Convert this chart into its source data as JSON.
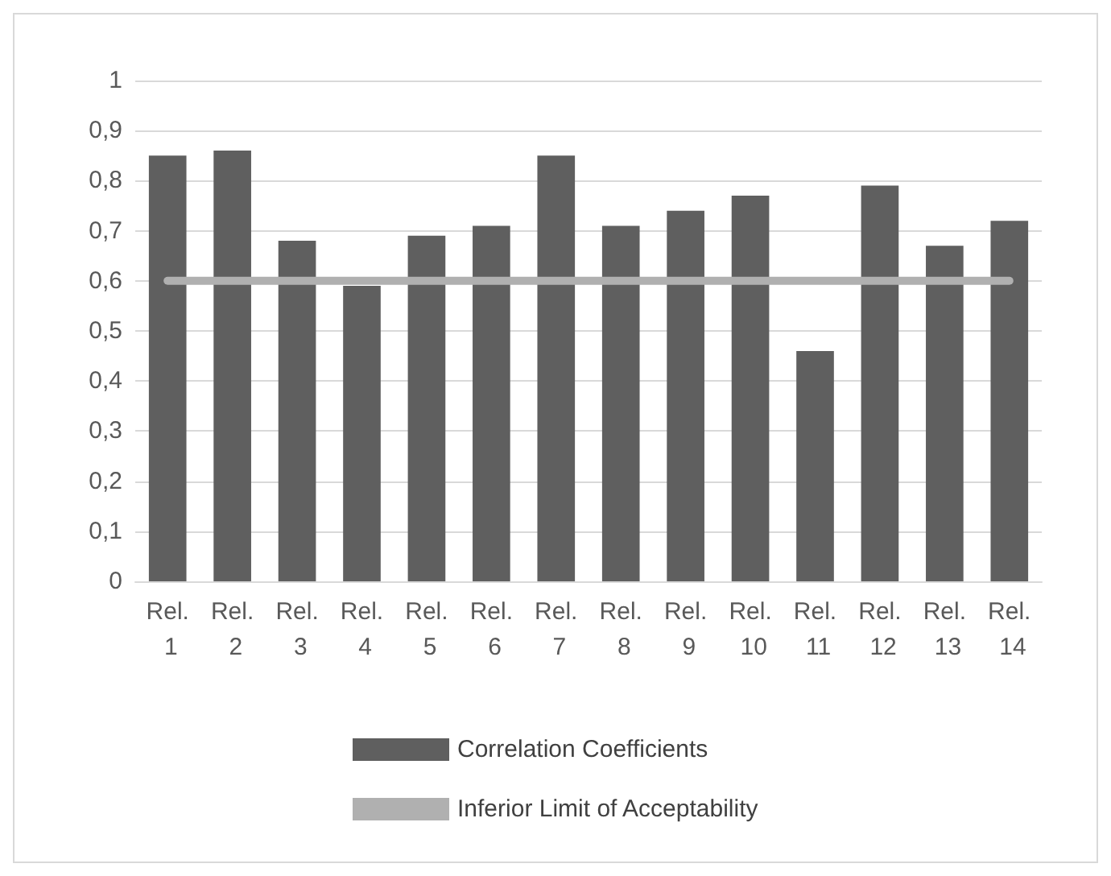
{
  "chart_data": {
    "type": "bar",
    "categories": [
      "Rel. 1",
      "Rel. 2",
      "Rel. 3",
      "Rel. 4",
      "Rel. 5",
      "Rel. 6",
      "Rel. 7",
      "Rel. 8",
      "Rel. 9",
      "Rel. 10",
      "Rel. 11",
      "Rel. 12",
      "Rel. 13",
      "Rel. 14"
    ],
    "series": [
      {
        "name": "Correlation Coefficients",
        "color": "#5f5f5f",
        "values": [
          0.85,
          0.86,
          0.68,
          0.59,
          0.69,
          0.71,
          0.85,
          0.71,
          0.74,
          0.77,
          0.46,
          0.79,
          0.67,
          0.72
        ]
      },
      {
        "name": "Inferior Limit of Acceptability",
        "type": "line",
        "color": "#b0b0b0",
        "values": [
          0.6,
          0.6,
          0.6,
          0.6,
          0.6,
          0.6,
          0.6,
          0.6,
          0.6,
          0.6,
          0.6,
          0.6,
          0.6,
          0.6
        ]
      }
    ],
    "ylim": [
      0,
      1
    ],
    "yticks": [
      0,
      {
        "value": 0.1,
        "label": "0,1"
      },
      {
        "value": 0.2,
        "label": "0,2"
      },
      {
        "value": 0.3,
        "label": "0,3"
      },
      {
        "value": 0.4,
        "label": "0,4"
      },
      {
        "value": 0.5,
        "label": "0,5"
      },
      {
        "value": 0.6,
        "label": "0,6"
      },
      {
        "value": 0.7,
        "label": "0,7"
      },
      {
        "value": 0.8,
        "label": "0,8"
      },
      {
        "value": 0.9,
        "label": "0,9"
      },
      1
    ],
    "grid": "y",
    "legend": "bottom",
    "marker": "none",
    "line_style": "solid"
  }
}
